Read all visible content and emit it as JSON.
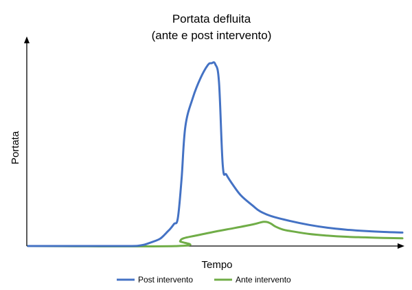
{
  "chart_data": {
    "type": "line",
    "title": "Portata defluita",
    "subtitle": "(ante e post intervento)",
    "xlabel": "Tempo",
    "ylabel": "Portata",
    "xlim": [
      0,
      100
    ],
    "ylim": [
      0,
      100
    ],
    "x_ticks_shown": false,
    "y_ticks_shown": false,
    "grid": false,
    "legend_position": "bottom",
    "series": [
      {
        "name": "Post intervento",
        "color": "#4472C4",
        "x": [
          0,
          25,
          30,
          33,
          35,
          36,
          37,
          38,
          39,
          40,
          41,
          42,
          44,
          46,
          48,
          49,
          50,
          51,
          52,
          53,
          55,
          57,
          60,
          62,
          65,
          70,
          75,
          80,
          85,
          90,
          95,
          100
        ],
        "y": [
          0,
          0,
          0.3,
          2,
          3.5,
          5,
          7,
          9,
          11.5,
          14.5,
          35,
          62,
          77,
          87,
          94,
          95,
          94.5,
          85,
          42,
          37,
          31,
          26,
          21,
          18,
          15.5,
          13,
          11,
          9.5,
          8.5,
          7.8,
          7.3,
          7
        ]
      },
      {
        "name": "Ante intervento",
        "color": "#70AD47",
        "x": [
          0,
          40,
          40.6,
          41.5,
          45,
          50,
          55,
          60,
          62,
          63,
          64,
          65,
          66,
          68,
          70,
          75,
          80,
          85,
          90,
          95,
          100
        ],
        "y": [
          0,
          0,
          2.5,
          4,
          5.5,
          7.5,
          9.3,
          11.2,
          12.2,
          12.6,
          12.4,
          11.5,
          10.2,
          8.6,
          7.8,
          6.3,
          5.4,
          4.8,
          4.5,
          4.2,
          4
        ]
      }
    ]
  }
}
